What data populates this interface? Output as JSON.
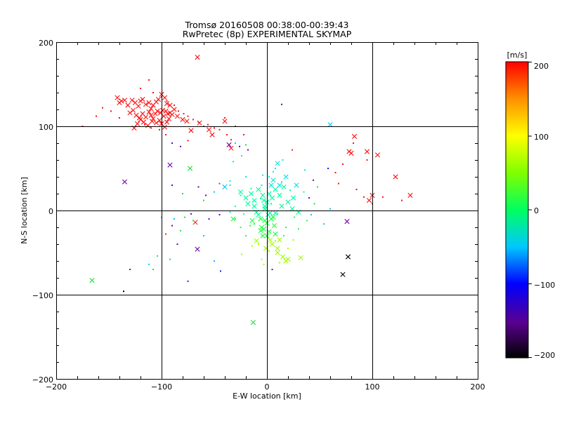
{
  "chart_data": {
    "type": "scatter",
    "title": "Tromsø 20160508 00:38:00-00:39:43",
    "subtitle": "RwPretec (8p) EXPERIMENTAL SKYMAP",
    "xlabel": "E-W location [km]",
    "ylabel": "N-S location [km]",
    "xlim": [
      -200,
      200
    ],
    "ylim": [
      -200,
      200
    ],
    "x_ticks": [
      "−200",
      "−100",
      "0",
      "100",
      "200"
    ],
    "y_ticks": [
      "200",
      "100",
      "0",
      "−100",
      "−200"
    ],
    "grid": true,
    "colorbar": {
      "label": "[m/s]",
      "range": [
        -200,
        200
      ],
      "ticks": [
        "200",
        "100",
        "0",
        "−100",
        "−200"
      ],
      "colormap": "black-purple-blue-cyan-green-yellow-red"
    },
    "series": [
      {
        "marker": "x",
        "points": [
          [
            -142,
            134
          ],
          [
            -138,
            130
          ],
          [
            -135,
            131
          ],
          [
            -140,
            128
          ],
          [
            -132,
            125
          ],
          [
            -128,
            131
          ],
          [
            -125,
            128
          ],
          [
            -122,
            124
          ],
          [
            -120,
            130
          ],
          [
            -118,
            132
          ],
          [
            -115,
            126
          ],
          [
            -112,
            128
          ],
          [
            -110,
            121
          ],
          [
            -108,
            125
          ],
          [
            -105,
            129
          ],
          [
            -103,
            132
          ],
          [
            -100,
            138
          ],
          [
            -97,
            134
          ],
          [
            -95,
            127
          ],
          [
            -92,
            125
          ],
          [
            -130,
            116
          ],
          [
            -127,
            119
          ],
          [
            -124,
            113
          ],
          [
            -121,
            110
          ],
          [
            -118,
            115
          ],
          [
            -115,
            111
          ],
          [
            -112,
            117
          ],
          [
            -110,
            113
          ],
          [
            -108,
            109
          ],
          [
            -106,
            115
          ],
          [
            -104,
            118
          ],
          [
            -101,
            116
          ],
          [
            -99,
            119
          ],
          [
            -96,
            118
          ],
          [
            -94,
            115
          ],
          [
            -92,
            116
          ],
          [
            -90,
            114
          ],
          [
            -98,
            112
          ],
          [
            -102,
            107
          ],
          [
            -105,
            104
          ],
          [
            -109,
            106
          ],
          [
            -113,
            101
          ],
          [
            -117,
            105
          ],
          [
            -120,
            108
          ],
          [
            -123,
            103
          ],
          [
            -126,
            98
          ],
          [
            -95,
            105
          ],
          [
            -93,
            109
          ],
          [
            -100,
            103
          ],
          [
            -97,
            99
          ],
          [
            -88,
            120
          ],
          [
            -85,
            112
          ],
          [
            -80,
            108
          ],
          [
            -76,
            106
          ],
          [
            -72,
            95
          ],
          [
            -64,
            104
          ],
          [
            -55,
            96
          ],
          [
            -34,
            74
          ],
          [
            -92,
            54
          ],
          [
            -73,
            50
          ],
          [
            -135,
            34
          ],
          [
            -166,
            -83
          ],
          [
            -32,
            -10
          ],
          [
            83,
            88
          ],
          [
            78,
            70
          ],
          [
            80,
            68
          ],
          [
            95,
            70
          ],
          [
            105,
            66
          ],
          [
            122,
            40
          ],
          [
            136,
            18
          ],
          [
            100,
            18
          ],
          [
            97,
            12
          ],
          [
            -68,
            -14
          ],
          [
            -66,
            -46
          ],
          [
            -40,
            106
          ],
          [
            -36,
            78
          ],
          [
            -66,
            182
          ],
          [
            72,
            -76
          ],
          [
            77,
            -55
          ],
          [
            32,
            -56
          ],
          [
            76,
            -13
          ],
          [
            -52,
            90
          ],
          [
            -40,
            28
          ],
          [
            -12,
            5
          ],
          [
            -3,
            12
          ],
          [
            5,
            15
          ],
          [
            12,
            18
          ],
          [
            -5,
            -20
          ],
          [
            -10,
            -36
          ],
          [
            10,
            -50
          ],
          [
            18,
            -60
          ],
          [
            -13,
            -133
          ],
          [
            0,
            10
          ],
          [
            2,
            20
          ],
          [
            4,
            30
          ],
          [
            8,
            25
          ],
          [
            12,
            30
          ],
          [
            16,
            28
          ],
          [
            -8,
            25
          ],
          [
            -4,
            18
          ],
          [
            -2,
            5
          ],
          [
            3,
            -3
          ],
          [
            6,
            -8
          ],
          [
            -6,
            -10
          ],
          [
            0,
            -15
          ],
          [
            2,
            -25
          ],
          [
            -4,
            -30
          ],
          [
            5,
            -40
          ],
          [
            10,
            -45
          ],
          [
            15,
            -55
          ],
          [
            20,
            -58
          ],
          [
            -3,
            -22
          ],
          [
            7,
            -18
          ],
          [
            -8,
            -5
          ],
          [
            14,
            5
          ],
          [
            20,
            10
          ],
          [
            25,
            15
          ],
          [
            -15,
            20
          ],
          [
            -20,
            15
          ],
          [
            -25,
            22
          ],
          [
            -18,
            8
          ],
          [
            -12,
            12
          ],
          [
            0,
            -30
          ],
          [
            3,
            -35
          ],
          [
            -1,
            -45
          ],
          [
            28,
            30
          ],
          [
            24,
            2
          ],
          [
            30,
            -2
          ],
          [
            -10,
            -2
          ],
          [
            -14,
            -12
          ],
          [
            8,
            -28
          ],
          [
            12,
            -35
          ],
          [
            60,
            102
          ],
          [
            8,
            -3
          ],
          [
            -2,
            2
          ],
          [
            -6,
            -24
          ],
          [
            6,
            36
          ],
          [
            10,
            56
          ],
          [
            18,
            40
          ],
          [
            1,
            -5
          ],
          [
            -2,
            -12
          ],
          [
            4,
            -10
          ]
        ]
      },
      {
        "marker": "dot",
        "points": [
          [
            -112,
            155
          ],
          [
            -120,
            145
          ],
          [
            -108,
            140
          ],
          [
            -100,
            135
          ],
          [
            -95,
            130
          ],
          [
            -88,
            125
          ],
          [
            -84,
            118
          ],
          [
            -79,
            115
          ],
          [
            -75,
            112
          ],
          [
            -70,
            108
          ],
          [
            -65,
            105
          ],
          [
            -60,
            100
          ],
          [
            -56,
            102
          ],
          [
            -50,
            98
          ],
          [
            -45,
            96
          ],
          [
            -38,
            90
          ],
          [
            -34,
            84
          ],
          [
            -30,
            80
          ],
          [
            -26,
            76
          ],
          [
            -22,
            90
          ],
          [
            -20,
            78
          ],
          [
            -18,
            72
          ],
          [
            -24,
            65
          ],
          [
            -75,
            83
          ],
          [
            -82,
            76
          ],
          [
            -90,
            80
          ],
          [
            -96,
            90
          ],
          [
            -102,
            96
          ],
          [
            -110,
            98
          ],
          [
            -116,
            102
          ],
          [
            -140,
            110
          ],
          [
            -148,
            118
          ],
          [
            -156,
            122
          ],
          [
            -162,
            112
          ],
          [
            -175,
            100
          ],
          [
            -80,
            20
          ],
          [
            -78,
            -8
          ],
          [
            -90,
            -18
          ],
          [
            -96,
            -28
          ],
          [
            -85,
            -40
          ],
          [
            -92,
            -58
          ],
          [
            -108,
            -70
          ],
          [
            -112,
            -64
          ],
          [
            -136,
            -96
          ],
          [
            -75,
            -84
          ],
          [
            -50,
            -60
          ],
          [
            -60,
            -30
          ],
          [
            -55,
            -10
          ],
          [
            -45,
            -5
          ],
          [
            -30,
            5
          ],
          [
            -25,
            18
          ],
          [
            -15,
            26
          ],
          [
            -5,
            30
          ],
          [
            2,
            40
          ],
          [
            8,
            50
          ],
          [
            15,
            60
          ],
          [
            -20,
            40
          ],
          [
            -35,
            30
          ],
          [
            -50,
            22
          ],
          [
            -60,
            12
          ],
          [
            35,
            22
          ],
          [
            40,
            15
          ],
          [
            45,
            8
          ],
          [
            42,
            -5
          ],
          [
            38,
            -12
          ],
          [
            30,
            -22
          ],
          [
            25,
            -35
          ],
          [
            20,
            -45
          ],
          [
            12,
            -62
          ],
          [
            5,
            -70
          ],
          [
            -5,
            -58
          ],
          [
            -14,
            -42
          ],
          [
            -20,
            -30
          ],
          [
            -25,
            -20
          ],
          [
            -30,
            -10
          ],
          [
            -35,
            -2
          ],
          [
            48,
            28
          ],
          [
            44,
            36
          ],
          [
            58,
            50
          ],
          [
            65,
            45
          ],
          [
            72,
            55
          ],
          [
            85,
            25
          ],
          [
            92,
            16
          ],
          [
            100,
            8
          ],
          [
            110,
            16
          ],
          [
            128,
            12
          ],
          [
            82,
            80
          ],
          [
            95,
            60
          ],
          [
            0,
            100
          ],
          [
            14,
            126
          ],
          [
            -30,
            100
          ],
          [
            -40,
            110
          ],
          [
            -35,
            35
          ],
          [
            -45,
            32
          ],
          [
            -65,
            28
          ],
          [
            -70,
            -12
          ],
          [
            -90,
            30
          ],
          [
            -100,
            -8
          ],
          [
            -88,
            -10
          ],
          [
            -82,
            -24
          ],
          [
            -4,
            42
          ],
          [
            6,
            46
          ],
          [
            14,
            34
          ],
          [
            22,
            24
          ],
          [
            26,
            -8
          ],
          [
            18,
            -20
          ],
          [
            8,
            -36
          ],
          [
            -8,
            -40
          ],
          [
            -16,
            -18
          ],
          [
            -22,
            -4
          ],
          [
            0,
            0
          ],
          [
            4,
            8
          ],
          [
            -6,
            14
          ],
          [
            10,
            -4
          ],
          [
            -12,
            -16
          ],
          [
            2,
            -48
          ],
          [
            16,
            -30
          ],
          [
            -3,
            -64
          ],
          [
            -72,
            -4
          ],
          [
            -58,
            18
          ],
          [
            -44,
            -72
          ],
          [
            -130,
            -70
          ],
          [
            -104,
            -54
          ],
          [
            60,
            2
          ],
          [
            -24,
            -52
          ],
          [
            36,
            48
          ],
          [
            54,
            -16
          ],
          [
            68,
            32
          ],
          [
            -32,
            58
          ],
          [
            24,
            72
          ]
        ]
      }
    ]
  }
}
